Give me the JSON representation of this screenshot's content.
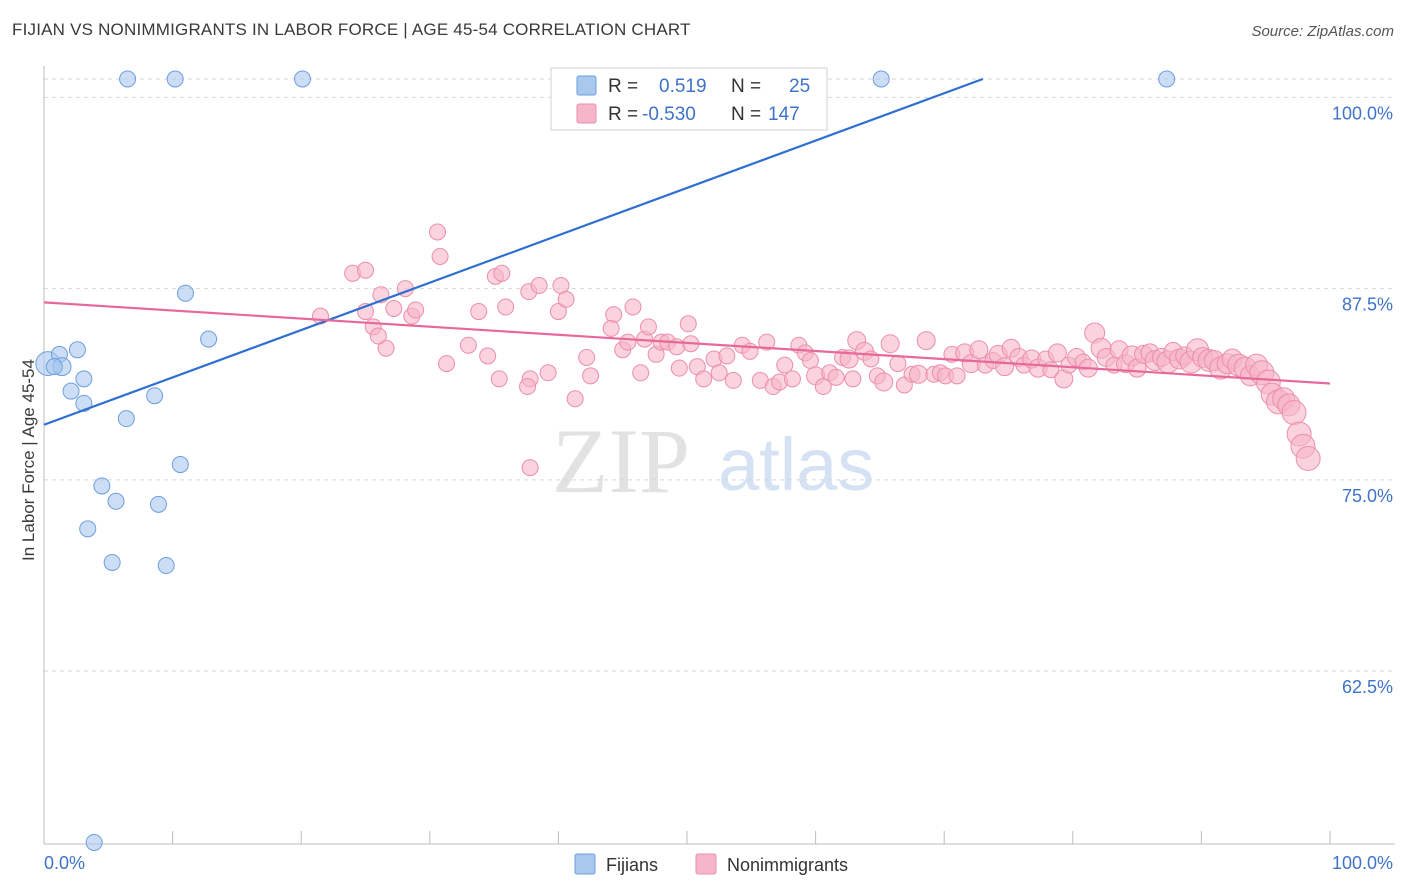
{
  "title": "FIJIAN VS NONIMMIGRANTS IN LABOR FORCE | AGE 45-54 CORRELATION CHART",
  "source": "Source: ZipAtlas.com",
  "colors": {
    "fijians_fill": "#a9c8ee",
    "fijians_stroke": "#6d9ee0",
    "fijians_line": "#2f6fd0",
    "nonimm_fill": "#f6b6c9",
    "nonimm_stroke": "#ec8eab",
    "nonimm_line": "#e6699a",
    "axis_label": "#3f73c9",
    "grid": "#d6d6d6"
  },
  "legend": {
    "r_label": "R =",
    "n_label": "N =",
    "series": [
      {
        "name": "Fijians",
        "r": "0.519",
        "n": "25"
      },
      {
        "name": "Nonimmigrants",
        "r": "-0.530",
        "n": "147"
      }
    ]
  },
  "watermark": {
    "zip": "ZIP",
    "atlas": "atlas"
  },
  "chart_data": {
    "type": "scatter",
    "title": "FIJIAN VS NONIMMIGRANTS IN LABOR FORCE | AGE 45-54 CORRELATION CHART",
    "xlabel": "",
    "ylabel": "In Labor Force | Age 45-54",
    "x_tick_labels": [
      "0.0%",
      "100.0%"
    ],
    "y_tick_labels": [
      "100.0%",
      "87.5%",
      "75.0%",
      "62.5%"
    ],
    "y_ticks": [
      100.0,
      87.5,
      75.0,
      62.5
    ],
    "xlim": [
      0,
      100
    ],
    "ylim": [
      51.2,
      101.2
    ],
    "grid": true,
    "legend_position": "bottom-center",
    "series": [
      {
        "name": "Fijians",
        "trend": {
          "x": [
            0,
            73
          ],
          "y": [
            78.6,
            101.2
          ]
        },
        "points": [
          [
            0.3,
            82.6,
            12
          ],
          [
            1.2,
            83.2,
            8
          ],
          [
            1.4,
            82.4,
            9
          ],
          [
            2.1,
            80.8,
            8
          ],
          [
            2.6,
            83.5,
            8
          ],
          [
            3.1,
            80.0,
            8
          ],
          [
            3.1,
            81.6,
            8
          ],
          [
            3.4,
            71.8,
            8
          ],
          [
            4.5,
            74.6,
            8
          ],
          [
            5.3,
            69.6,
            8
          ],
          [
            5.6,
            73.6,
            8
          ],
          [
            6.4,
            79.0,
            8
          ],
          [
            6.5,
            101.2,
            8
          ],
          [
            8.6,
            80.5,
            8
          ],
          [
            8.9,
            73.4,
            8
          ],
          [
            9.5,
            69.4,
            8
          ],
          [
            10.2,
            101.2,
            8
          ],
          [
            10.6,
            76.0,
            8
          ],
          [
            11.0,
            87.2,
            8
          ],
          [
            12.8,
            84.2,
            8
          ],
          [
            20.1,
            101.2,
            8
          ],
          [
            3.9,
            51.3,
            8
          ],
          [
            65.1,
            101.2,
            8
          ],
          [
            87.3,
            101.2,
            8
          ],
          [
            0.8,
            82.4,
            8
          ]
        ]
      },
      {
        "name": "Nonimmigrants",
        "trend": {
          "x": [
            0,
            100
          ],
          "y": [
            86.6,
            81.3
          ]
        },
        "points": [
          [
            21.5,
            85.7,
            8
          ],
          [
            24.0,
            88.5,
            8
          ],
          [
            25.0,
            88.7,
            8
          ],
          [
            25.0,
            86.0,
            8
          ],
          [
            25.6,
            85.0,
            8
          ],
          [
            26.2,
            87.1,
            8
          ],
          [
            26.6,
            83.6,
            8
          ],
          [
            27.2,
            86.2,
            8
          ],
          [
            28.1,
            87.5,
            8
          ],
          [
            28.6,
            85.7,
            8
          ],
          [
            28.9,
            86.1,
            8
          ],
          [
            30.6,
            91.2,
            8
          ],
          [
            30.8,
            89.6,
            8
          ],
          [
            31.3,
            82.6,
            8
          ],
          [
            33.0,
            83.8,
            8
          ],
          [
            33.8,
            86.0,
            8
          ],
          [
            34.5,
            83.1,
            8
          ],
          [
            35.1,
            88.3,
            8
          ],
          [
            35.6,
            88.5,
            8
          ],
          [
            35.9,
            86.3,
            8
          ],
          [
            35.4,
            81.6,
            8
          ],
          [
            37.7,
            87.3,
            8
          ],
          [
            38.5,
            87.7,
            8
          ],
          [
            37.8,
            81.6,
            8
          ],
          [
            37.6,
            81.1,
            8
          ],
          [
            39.2,
            82.0,
            8
          ],
          [
            40.0,
            86.0,
            8
          ],
          [
            40.2,
            87.7,
            8
          ],
          [
            40.6,
            86.8,
            8
          ],
          [
            41.3,
            80.3,
            8
          ],
          [
            42.2,
            83.0,
            8
          ],
          [
            42.5,
            81.8,
            8
          ],
          [
            44.3,
            85.8,
            8
          ],
          [
            45.0,
            83.5,
            8
          ],
          [
            45.4,
            84.0,
            8
          ],
          [
            45.8,
            86.3,
            8
          ],
          [
            46.4,
            82.0,
            8
          ],
          [
            46.7,
            84.2,
            8
          ],
          [
            47.0,
            85.0,
            8
          ],
          [
            47.6,
            83.2,
            8
          ],
          [
            48.0,
            84.0,
            8
          ],
          [
            48.5,
            84.0,
            8
          ],
          [
            49.2,
            83.7,
            8
          ],
          [
            49.4,
            82.3,
            8
          ],
          [
            50.1,
            85.2,
            8
          ],
          [
            50.3,
            83.9,
            8
          ],
          [
            50.8,
            82.4,
            8
          ],
          [
            51.3,
            81.6,
            8
          ],
          [
            52.1,
            82.9,
            8
          ],
          [
            52.5,
            82.0,
            8
          ],
          [
            53.1,
            83.1,
            8
          ],
          [
            53.6,
            81.5,
            8
          ],
          [
            54.3,
            83.8,
            8
          ],
          [
            54.9,
            83.4,
            8
          ],
          [
            55.7,
            81.5,
            8
          ],
          [
            56.2,
            84.0,
            8
          ],
          [
            56.7,
            81.1,
            8
          ],
          [
            57.2,
            81.4,
            8
          ],
          [
            57.6,
            82.5,
            8
          ],
          [
            58.2,
            81.6,
            8
          ],
          [
            58.7,
            83.8,
            8
          ],
          [
            59.2,
            83.3,
            8
          ],
          [
            59.6,
            82.8,
            8
          ],
          [
            60.0,
            81.8,
            9
          ],
          [
            60.6,
            81.1,
            8
          ],
          [
            61.1,
            82.0,
            8
          ],
          [
            61.6,
            81.7,
            8
          ],
          [
            62.1,
            83.0,
            8
          ],
          [
            62.6,
            82.9,
            9
          ],
          [
            62.9,
            81.6,
            8
          ],
          [
            63.2,
            84.1,
            9
          ],
          [
            63.8,
            83.4,
            9
          ],
          [
            64.3,
            82.9,
            8
          ],
          [
            64.8,
            81.8,
            8
          ],
          [
            65.3,
            81.4,
            9
          ],
          [
            65.8,
            83.9,
            9
          ],
          [
            66.4,
            82.6,
            8
          ],
          [
            66.9,
            81.2,
            8
          ],
          [
            67.5,
            81.9,
            8
          ],
          [
            68.0,
            81.9,
            9
          ],
          [
            68.6,
            84.1,
            9
          ],
          [
            69.2,
            81.9,
            8
          ],
          [
            69.7,
            82.0,
            8
          ],
          [
            70.1,
            81.8,
            8
          ],
          [
            70.6,
            83.2,
            8
          ],
          [
            71.0,
            81.8,
            8
          ],
          [
            71.6,
            83.3,
            9
          ],
          [
            72.1,
            82.6,
            9
          ],
          [
            72.7,
            83.5,
            9
          ],
          [
            73.2,
            82.5,
            8
          ],
          [
            73.8,
            82.8,
            8
          ],
          [
            74.2,
            83.2,
            9
          ],
          [
            74.7,
            82.4,
            9
          ],
          [
            75.2,
            83.6,
            9
          ],
          [
            75.8,
            83.0,
            9
          ],
          [
            76.2,
            82.5,
            8
          ],
          [
            76.8,
            82.9,
            9
          ],
          [
            77.3,
            82.3,
            9
          ],
          [
            77.9,
            82.9,
            8
          ],
          [
            78.3,
            82.2,
            8
          ],
          [
            78.8,
            83.3,
            9
          ],
          [
            79.3,
            81.6,
            9
          ],
          [
            79.7,
            82.5,
            8
          ],
          [
            80.3,
            83.0,
            9
          ],
          [
            80.8,
            82.7,
            8
          ],
          [
            81.2,
            82.3,
            9
          ],
          [
            81.7,
            84.6,
            10
          ],
          [
            82.2,
            83.6,
            10
          ],
          [
            82.6,
            83.0,
            9
          ],
          [
            83.2,
            82.5,
            8
          ],
          [
            83.6,
            83.5,
            9
          ],
          [
            84.1,
            82.6,
            9
          ],
          [
            84.6,
            83.1,
            10
          ],
          [
            85.0,
            82.3,
            9
          ],
          [
            85.5,
            83.2,
            9
          ],
          [
            86.0,
            83.3,
            9
          ],
          [
            86.4,
            82.8,
            10
          ],
          [
            86.9,
            83.0,
            9
          ],
          [
            87.4,
            82.7,
            11
          ],
          [
            87.8,
            83.4,
            9
          ],
          [
            88.3,
            82.9,
            10
          ],
          [
            88.7,
            83.1,
            9
          ],
          [
            89.2,
            82.7,
            11
          ],
          [
            89.7,
            83.5,
            11
          ],
          [
            90.1,
            83.0,
            10
          ],
          [
            90.6,
            82.8,
            11
          ],
          [
            91.0,
            82.8,
            10
          ],
          [
            91.5,
            82.3,
            11
          ],
          [
            92.0,
            82.6,
            10
          ],
          [
            92.4,
            82.9,
            10
          ],
          [
            92.9,
            82.5,
            11
          ],
          [
            93.4,
            82.3,
            11
          ],
          [
            93.8,
            81.8,
            10
          ],
          [
            94.3,
            82.5,
            11
          ],
          [
            94.7,
            82.0,
            12
          ],
          [
            95.2,
            81.4,
            12
          ],
          [
            95.5,
            80.6,
            11
          ],
          [
            96.0,
            80.1,
            12
          ],
          [
            96.4,
            80.3,
            11
          ],
          [
            96.8,
            79.9,
            11
          ],
          [
            97.2,
            79.4,
            12
          ],
          [
            97.6,
            78.0,
            12
          ],
          [
            97.9,
            77.2,
            12
          ],
          [
            98.3,
            76.4,
            12
          ],
          [
            37.8,
            75.8,
            8
          ],
          [
            26.0,
            84.4,
            8
          ],
          [
            44.1,
            84.9,
            8
          ]
        ]
      }
    ]
  }
}
